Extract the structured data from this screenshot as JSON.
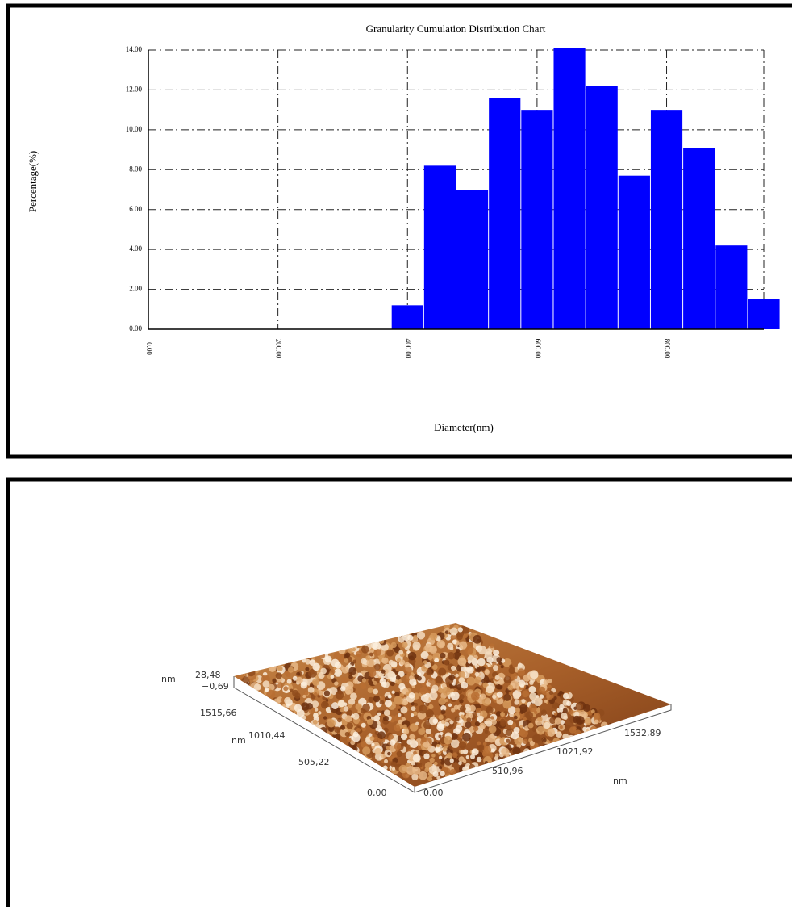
{
  "chart_data": {
    "type": "histogram",
    "title": "Granularity Cumulation Distribution  Chart",
    "x_label": "Diameter(nm)",
    "y_label": "Percentage(%)",
    "bins": [
      375,
      425,
      475,
      525,
      575,
      625,
      675,
      725,
      775,
      825,
      875,
      925,
      975
    ],
    "values": [
      1.2,
      8.2,
      7.0,
      11.6,
      11.0,
      14.1,
      12.2,
      7.7,
      11.0,
      9.1,
      4.2,
      1.5
    ],
    "color": "#0000ff",
    "xlim": [
      0,
      950
    ],
    "xticks": [
      {
        "value": 0,
        "label": "0.00"
      },
      {
        "value": 200,
        "label": "200.00"
      },
      {
        "value": 400,
        "label": "400.00"
      },
      {
        "value": 600,
        "label": "600.00"
      },
      {
        "value": 800,
        "label": "800.00"
      }
    ],
    "ylim": [
      0,
      14
    ],
    "yticks": [
      {
        "value": 0,
        "label": "0.00"
      },
      {
        "value": 2,
        "label": "2.00"
      },
      {
        "value": 4,
        "label": "4.00"
      },
      {
        "value": 6,
        "label": "6.00"
      },
      {
        "value": 8,
        "label": "8.00"
      },
      {
        "value": 10,
        "label": "10.00"
      },
      {
        "value": 12,
        "label": "12.00"
      },
      {
        "value": 14,
        "label": "14.00"
      }
    ],
    "grid": true
  },
  "afm_image": {
    "z_unit": "nm",
    "z_max": "28,48",
    "z_min": "−0,69",
    "y_unit": "nm",
    "y_ticks": [
      "1515,66",
      "1010,44",
      "505,22",
      "0,00"
    ],
    "x_unit": "nm",
    "x_ticks": [
      "0,00",
      "510,96",
      "1021,92",
      "1532,89"
    ]
  }
}
